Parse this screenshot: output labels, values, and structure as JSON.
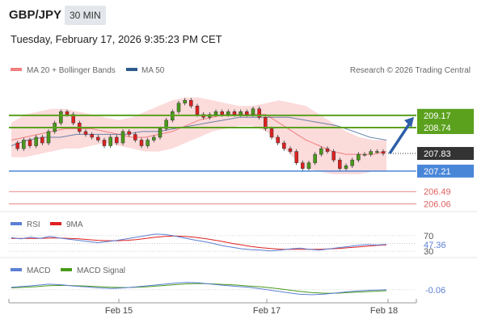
{
  "header": {
    "pair": "GBP/JPY",
    "timeframe": "30 MIN",
    "timestamp": "Tuesday, February 17, 2026 9:35:23 PM CET"
  },
  "chart_data": {
    "type": "candlestick",
    "title": "GBP/JPY",
    "legend": [
      {
        "name": "MA 20 + Bollinger Bands",
        "color": "#f08080"
      },
      {
        "name": "MA 50",
        "color": "#2e5a8e"
      }
    ],
    "copyright": "Research © 2026 Trading Central",
    "ylim": [
      205.9,
      210.5
    ],
    "price_series": [
      208.2,
      208.0,
      208.3,
      208.1,
      208.4,
      208.2,
      208.6,
      208.9,
      209.3,
      209.2,
      208.9,
      208.6,
      208.5,
      208.4,
      208.3,
      208.1,
      208.4,
      208.2,
      208.6,
      208.5,
      208.3,
      208.1,
      208.3,
      208.4,
      208.7,
      209.0,
      209.3,
      209.6,
      209.7,
      209.5,
      209.2,
      209.1,
      209.2,
      209.3,
      209.2,
      209.3,
      209.2,
      209.3,
      209.2,
      209.4,
      209.1,
      208.7,
      208.4,
      208.2,
      208.0,
      207.9,
      207.5,
      207.3,
      207.5,
      207.8,
      208.0,
      207.9,
      207.6,
      207.3,
      207.4,
      207.6,
      207.8,
      207.8,
      207.9,
      207.9,
      207.83
    ],
    "ma20": [
      208.3,
      208.4,
      208.5,
      208.6,
      208.7,
      208.7,
      208.7,
      208.6,
      208.5,
      208.4,
      208.4,
      208.5,
      208.6,
      208.8,
      209.0,
      209.1,
      209.2,
      209.2,
      209.2,
      209.2,
      208.9,
      208.6,
      208.3,
      208.1,
      207.9,
      207.8,
      207.8,
      207.8,
      207.9
    ],
    "ma50": [
      208.1,
      208.3,
      208.4,
      208.4,
      208.5,
      208.5,
      208.5,
      208.5,
      208.6,
      208.6,
      208.7,
      208.8,
      208.9,
      209.0,
      209.1,
      209.1,
      209.1,
      209.1,
      209.0,
      208.9,
      208.8,
      208.6,
      208.4,
      208.3
    ],
    "bb_upper": [
      208.9,
      209.2,
      209.3,
      209.4,
      209.4,
      209.3,
      209.2,
      209.1,
      209.0,
      209.1,
      209.3,
      209.5,
      209.7,
      209.8,
      209.8,
      209.7,
      209.6,
      209.5,
      209.5,
      209.6,
      209.7,
      209.6,
      209.5,
      209.2,
      208.9,
      208.6,
      208.4,
      208.3,
      208.3
    ],
    "bb_lower": [
      207.7,
      207.7,
      207.8,
      207.9,
      208.0,
      208.0,
      208.1,
      208.2,
      208.1,
      208.0,
      207.9,
      207.9,
      208.0,
      208.2,
      208.4,
      208.6,
      208.7,
      208.8,
      208.8,
      208.6,
      208.2,
      207.7,
      207.3,
      207.2,
      207.1,
      207.1,
      207.1,
      207.2,
      207.2
    ],
    "resistance_levels": [
      209.17,
      208.74
    ],
    "support_levels": [
      207.21
    ],
    "other_levels": [
      206.49,
      206.06
    ],
    "last_price": 207.83,
    "forecast_arrow": {
      "from": 207.83,
      "to": 209.17
    },
    "level_labels": [
      "209.17",
      "208.74",
      "207.83",
      "207.21",
      "206.49",
      "206.06"
    ],
    "rsi": {
      "legend": [
        "RSI",
        "9MA"
      ],
      "colors": [
        "#5b7fd4",
        "#e02020"
      ],
      "levels": [
        "70",
        "30"
      ],
      "ylim": [
        20,
        80
      ],
      "value_label": "47.36",
      "rsi_values": [
        65,
        62,
        66,
        63,
        68,
        64,
        61,
        58,
        55,
        52,
        55,
        58,
        62,
        66,
        70,
        74,
        73,
        69,
        64,
        59,
        55,
        50,
        44,
        40,
        36,
        34,
        33,
        31,
        33,
        36,
        38,
        35,
        33,
        36,
        39,
        42,
        45,
        47,
        46,
        47.36
      ],
      "ma_values": [
        63,
        63,
        63,
        63,
        64,
        64,
        63,
        62,
        60,
        58,
        57,
        57,
        58,
        60,
        63,
        66,
        68,
        69,
        68,
        66,
        63,
        59,
        55,
        50,
        46,
        42,
        39,
        37,
        35,
        35,
        35,
        35,
        35,
        36,
        37,
        39,
        41,
        43,
        45,
        46
      ]
    },
    "macd": {
      "legend": [
        "MACD",
        "MACD Signal"
      ],
      "colors": [
        "#5b7fd4",
        "#4a9a1a"
      ],
      "value_label": "-0.06",
      "ylim": [
        -0.35,
        0.35
      ],
      "macd_values": [
        0.02,
        0.05,
        0.08,
        0.12,
        0.1,
        0.06,
        0.03,
        0.0,
        -0.02,
        0.0,
        0.03,
        0.07,
        0.11,
        0.15,
        0.18,
        0.16,
        0.12,
        0.08,
        0.05,
        0.02,
        -0.03,
        -0.09,
        -0.15,
        -0.2,
        -0.22,
        -0.2,
        -0.16,
        -0.12,
        -0.09,
        -0.07,
        -0.06
      ],
      "signal_values": [
        0.0,
        0.02,
        0.04,
        0.07,
        0.08,
        0.07,
        0.06,
        0.04,
        0.02,
        0.01,
        0.02,
        0.04,
        0.07,
        0.1,
        0.13,
        0.14,
        0.13,
        0.11,
        0.09,
        0.06,
        0.03,
        -0.01,
        -0.06,
        -0.11,
        -0.15,
        -0.17,
        -0.17,
        -0.15,
        -0.13,
        -0.11,
        -0.09
      ]
    },
    "x_tick_labels": [
      "Feb 15",
      "Feb 17",
      "Feb 18"
    ]
  },
  "colors": {
    "resistance": "#5ba11e",
    "support": "#4a86d8",
    "other": "#e06060",
    "last": "#333333",
    "bb_fill": "#fbd5d5",
    "arrow": "#2e5fa8",
    "candle_up": "#4a9a1a",
    "candle_down": "#e02020"
  }
}
